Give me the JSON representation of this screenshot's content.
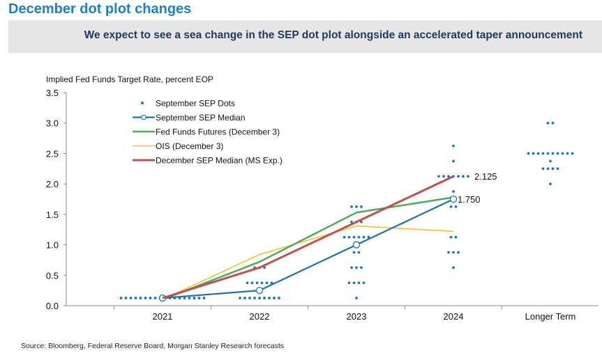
{
  "header": {
    "title": "December dot plot changes",
    "subtitle": "We expect to see a sea change in the SEP dot plot alongside an accelerated taper announcement"
  },
  "footer": {
    "source": "Source: Bloomberg, Federal Reserve Board, Morgan Stanley Research forecasts"
  },
  "colors": {
    "dots": "#1f77b4",
    "sep_median": "#1f6fb2",
    "futures": "#4caa5a",
    "ois": "#f2c12e",
    "dec_median": "#c0504d",
    "title": "#1f7fc0",
    "banner": "#e6e6e6"
  },
  "chart_data": {
    "type": "scatter",
    "ylabel": "Implied Fed Funds Target Rate, percent EOP",
    "ylim": [
      0,
      3.5
    ],
    "yticks": [
      0.0,
      0.5,
      1.0,
      1.5,
      2.0,
      2.5,
      3.0,
      3.5
    ],
    "ytick_labels": [
      "0.0",
      "0.5",
      "1.0",
      "1.5",
      "2.0",
      "2.5",
      "3.0",
      "3.5"
    ],
    "categories": [
      "2021",
      "2022",
      "2023",
      "2024",
      "Longer Term"
    ],
    "legend_position": "top-left",
    "dots": [
      {
        "category": "2021",
        "rows": [
          {
            "y": 0.125,
            "count": 18
          }
        ]
      },
      {
        "category": "2022",
        "rows": [
          {
            "y": 0.625,
            "count": 3
          },
          {
            "y": 0.375,
            "count": 6
          },
          {
            "y": 0.125,
            "count": 9
          }
        ]
      },
      {
        "category": "2023",
        "rows": [
          {
            "y": 1.625,
            "count": 3
          },
          {
            "y": 1.375,
            "count": 3
          },
          {
            "y": 1.125,
            "count": 6
          },
          {
            "y": 0.875,
            "count": 2
          },
          {
            "y": 0.625,
            "count": 3
          },
          {
            "y": 0.375,
            "count": 4
          },
          {
            "y": 0.125,
            "count": 1
          }
        ]
      },
      {
        "category": "2024",
        "rows": [
          {
            "y": 2.625,
            "count": 1
          },
          {
            "y": 2.375,
            "count": 1
          },
          {
            "y": 2.125,
            "count": 7
          },
          {
            "y": 1.875,
            "count": 1
          },
          {
            "y": 1.625,
            "count": 2
          },
          {
            "y": 1.125,
            "count": 2
          },
          {
            "y": 0.875,
            "count": 3
          },
          {
            "y": 0.625,
            "count": 1
          }
        ]
      },
      {
        "category": "Longer Term",
        "rows": [
          {
            "y": 3.0,
            "count": 2
          },
          {
            "y": 2.5,
            "count": 10
          },
          {
            "y": 2.375,
            "count": 1
          },
          {
            "y": 2.25,
            "count": 4
          },
          {
            "y": 2.0,
            "count": 1
          }
        ]
      }
    ],
    "series": [
      {
        "name": "September SEP Median",
        "style": "line-marker",
        "x": [
          "2021",
          "2022",
          "2023",
          "2024"
        ],
        "values": [
          0.125,
          0.25,
          1.0,
          1.75
        ]
      },
      {
        "name": "Fed Funds Futures (December 3)",
        "style": "line",
        "x": [
          "2021",
          "2022",
          "2023",
          "2024"
        ],
        "values": [
          0.1,
          0.72,
          1.53,
          1.78
        ]
      },
      {
        "name": "OIS (December 3)",
        "style": "line",
        "x": [
          "2021",
          "2022",
          "2023",
          "2024"
        ],
        "values": [
          0.1,
          0.84,
          1.31,
          1.22
        ]
      },
      {
        "name": "December SEP Median (MS Exp.)",
        "style": "line",
        "x": [
          "2021",
          "2022",
          "2023",
          "2024"
        ],
        "values": [
          0.125,
          0.625,
          1.375,
          2.125
        ]
      }
    ],
    "legend": [
      {
        "label": "September SEP Dots",
        "kind": "dot"
      },
      {
        "label": "September SEP Median",
        "kind": "line-marker"
      },
      {
        "label": "Fed Funds Futures (December 3)",
        "kind": "line"
      },
      {
        "label": "OIS (December 3)",
        "kind": "line"
      },
      {
        "label": "December SEP Median (MS Exp.)",
        "kind": "line"
      }
    ],
    "annotations": [
      {
        "text": "2.125",
        "category": "2024",
        "y": 2.125
      },
      {
        "text": "1.750",
        "category": "2024",
        "y": 1.75
      }
    ]
  }
}
